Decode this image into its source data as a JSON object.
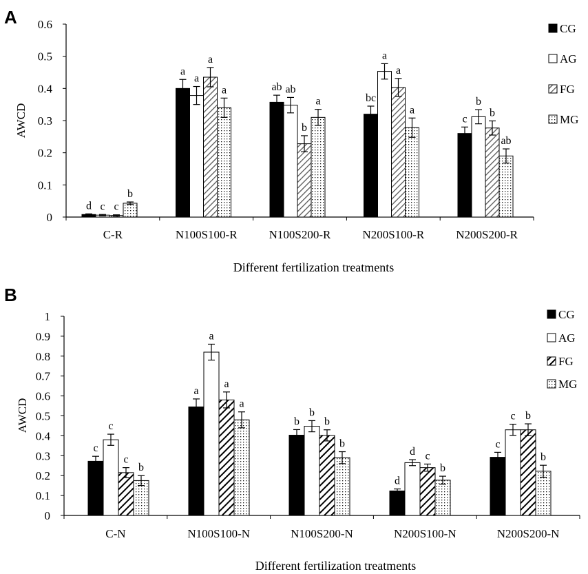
{
  "chart_data": [
    {
      "panel": "A",
      "type": "bar",
      "title": "",
      "xlabel": "Different fertilization treatments",
      "ylabel": "AWCD",
      "ylim": [
        0,
        0.6
      ],
      "yticks": [
        "0",
        "0.1",
        "0.2",
        "0.3",
        "0.4",
        "0.5",
        "0.6"
      ],
      "categories": [
        "C-R",
        "N100S100-R",
        "N100S200-R",
        "N200S100-R",
        "N200S200-R"
      ],
      "series": [
        {
          "name": "CG",
          "pattern": "solid",
          "values": [
            0.008,
            0.4,
            0.357,
            0.32,
            0.26
          ],
          "errors": [
            0.002,
            0.028,
            0.022,
            0.025,
            0.02
          ],
          "letters": [
            "d",
            "a",
            "ab",
            "bc",
            "c"
          ]
        },
        {
          "name": "AG",
          "pattern": "open",
          "values": [
            0.006,
            0.378,
            0.348,
            0.453,
            0.312
          ],
          "errors": [
            0.002,
            0.028,
            0.024,
            0.024,
            0.022
          ],
          "letters": [
            "c",
            "a",
            "ab",
            "a",
            "b"
          ]
        },
        {
          "name": "FG",
          "pattern": "diagonal",
          "values": [
            0.005,
            0.435,
            0.228,
            0.403,
            0.277
          ],
          "errors": [
            0.002,
            0.03,
            0.025,
            0.028,
            0.022
          ],
          "letters": [
            "c",
            "a",
            "b",
            "a",
            "b"
          ]
        },
        {
          "name": "MG",
          "pattern": "dots",
          "values": [
            0.043,
            0.34,
            0.31,
            0.278,
            0.19
          ],
          "errors": [
            0.004,
            0.03,
            0.025,
            0.03,
            0.022
          ],
          "letters": [
            "b",
            "a",
            "a",
            "a",
            "ab"
          ]
        }
      ],
      "legend": [
        "CG",
        "AG",
        "FG",
        "MG"
      ],
      "legend_position": "right"
    },
    {
      "panel": "B",
      "type": "bar",
      "title": "",
      "xlabel": "Different fertilization treatments",
      "ylabel": "AWCD",
      "ylim": [
        0,
        1
      ],
      "yticks": [
        "0",
        "0.1",
        "0.2",
        "0.3",
        "0.4",
        "0.5",
        "0.6",
        "0.7",
        "0.8",
        "0.9",
        "1"
      ],
      "categories": [
        "C-N",
        "N100S100-N",
        "N100S200-N",
        "N200S100-N",
        "N200S200-N"
      ],
      "series": [
        {
          "name": "CG",
          "pattern": "solid",
          "values": [
            0.272,
            0.545,
            0.403,
            0.123,
            0.292
          ],
          "errors": [
            0.025,
            0.04,
            0.028,
            0.01,
            0.025
          ],
          "letters": [
            "c",
            "a",
            "b",
            "d",
            "c"
          ]
        },
        {
          "name": "AG",
          "pattern": "open",
          "values": [
            0.38,
            0.82,
            0.448,
            0.265,
            0.43
          ],
          "errors": [
            0.028,
            0.04,
            0.028,
            0.015,
            0.028
          ],
          "letters": [
            "c",
            "a",
            "b",
            "d",
            "c"
          ]
        },
        {
          "name": "FG",
          "pattern": "thick-diagonal",
          "values": [
            0.215,
            0.58,
            0.402,
            0.24,
            0.43
          ],
          "errors": [
            0.025,
            0.04,
            0.028,
            0.018,
            0.03
          ],
          "letters": [
            "c",
            "a",
            "b",
            "c",
            "b"
          ]
        },
        {
          "name": "MG",
          "pattern": "dots",
          "values": [
            0.175,
            0.48,
            0.29,
            0.177,
            0.222
          ],
          "errors": [
            0.025,
            0.04,
            0.03,
            0.02,
            0.03
          ],
          "letters": [
            "b",
            "a",
            "b",
            "b",
            "b"
          ]
        }
      ],
      "legend": [
        "CG",
        "AG",
        "FG",
        "MG"
      ],
      "legend_position": "right"
    }
  ]
}
